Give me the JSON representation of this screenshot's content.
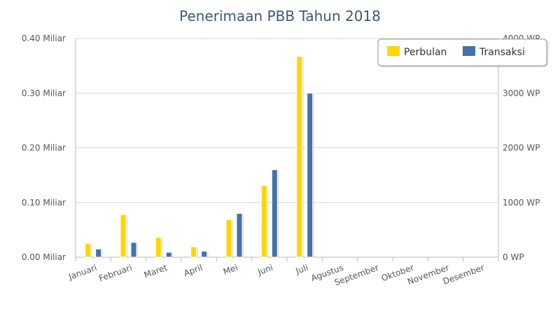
{
  "chart_data": {
    "type": "bar",
    "title": "Penerimaan PBB Tahun 2018",
    "categories": [
      "Januari",
      "Februari",
      "Maret",
      "April",
      "Mei",
      "Juni",
      "Juli",
      "Agustus",
      "September",
      "Oktober",
      "November",
      "Desember"
    ],
    "series": [
      {
        "name": "Perbulan",
        "color": "#ffd700",
        "axis": "left",
        "values": [
          0.025,
          0.078,
          0.036,
          0.019,
          0.069,
          0.131,
          0.367,
          0,
          0,
          0,
          0,
          0
        ]
      },
      {
        "name": "Transaksi",
        "color": "#4572a7",
        "axis": "right",
        "values": [
          150,
          270,
          90,
          110,
          800,
          1600,
          3000,
          0,
          0,
          0,
          0,
          0
        ]
      }
    ],
    "y_left": {
      "ylim": [
        0,
        0.4
      ],
      "ticks": [
        0,
        0.1,
        0.2,
        0.3,
        0.4
      ],
      "tick_labels": [
        "0.00 Miliar",
        "0.10 Miliar",
        "0.20 Miliar",
        "0.30 Miliar",
        "0.40 Miliar"
      ]
    },
    "y_right": {
      "ylim": [
        0,
        4000
      ],
      "ticks": [
        0,
        1000,
        2000,
        3000,
        4000
      ],
      "tick_labels": [
        "0 WP",
        "1000 WP",
        "2000 WP",
        "3000 WP",
        "4000 WP"
      ]
    },
    "grid": true,
    "legend_position": "top-right"
  }
}
